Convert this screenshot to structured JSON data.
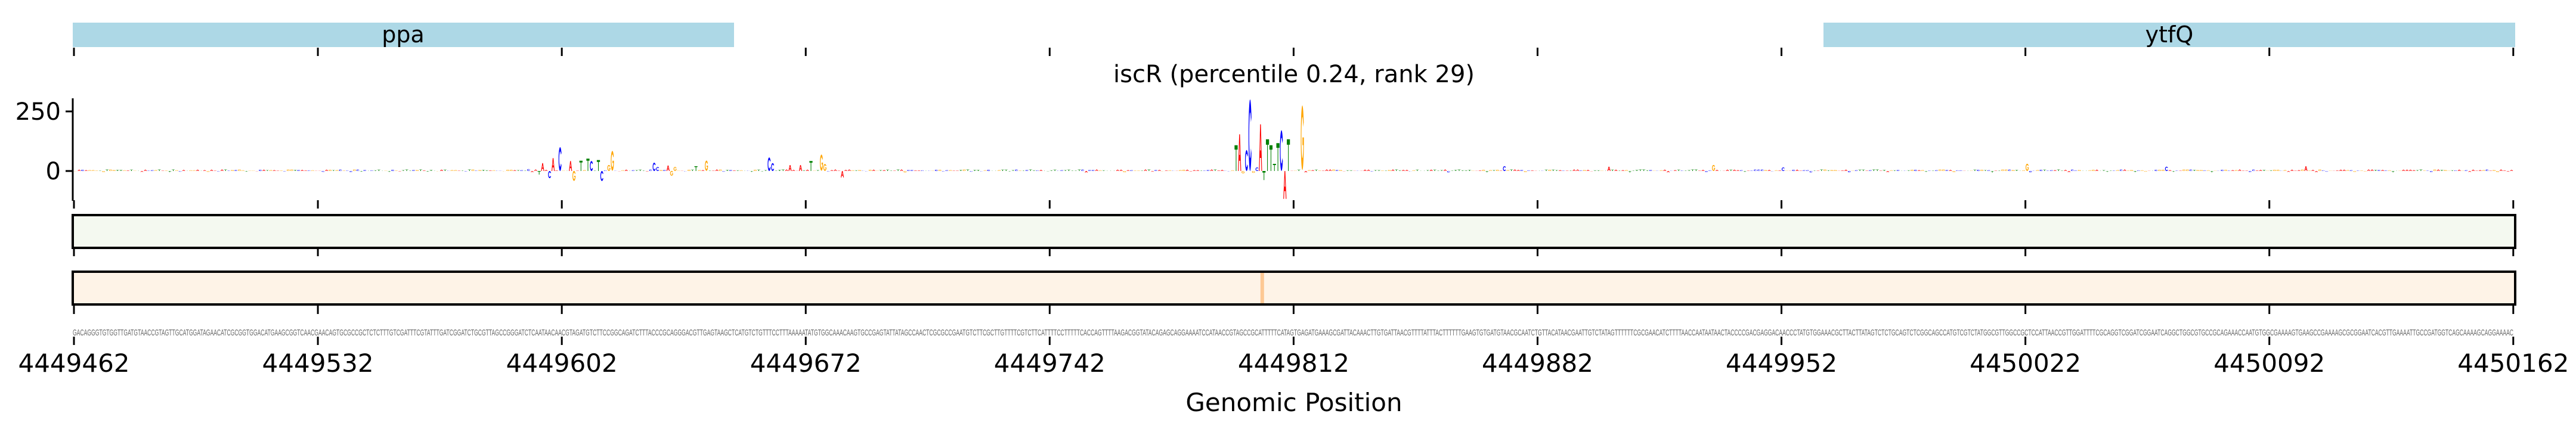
{
  "chart_data": {
    "type": "sequence-logo-track",
    "title": "iscR (percentile 0.24, rank 29)",
    "xlabel": "Genomic Position",
    "xlim": [
      4449462,
      4450162
    ],
    "xticks": [
      "4449462",
      "4449532",
      "4449602",
      "4449672",
      "4449742",
      "4449812",
      "4449882",
      "4449952",
      "4450022",
      "4450092",
      "4450162"
    ],
    "ylim": [
      -120,
      310
    ],
    "yticks": [
      {
        "value": 250,
        "label": "250"
      },
      {
        "value": 0,
        "label": "0"
      }
    ],
    "annotations": [
      {
        "name": "ppa",
        "start": 4449462,
        "end": 4449651
      },
      {
        "name": "ytfQ",
        "start": 4449964,
        "end": 4450162
      }
    ],
    "letter_colors": {
      "A": "#ff0000",
      "C": "#0000ff",
      "G": "#ffa500",
      "T": "#008000"
    },
    "logo_peaks": [
      [
        130,
        "C",
        8
      ],
      [
        133,
        "T",
        -15
      ],
      [
        134,
        "A",
        33
      ],
      [
        136,
        "C",
        -30
      ],
      [
        137,
        "A",
        54
      ],
      [
        139,
        "C",
        100
      ],
      [
        142,
        "A",
        42
      ],
      [
        143,
        "G",
        -42
      ],
      [
        145,
        "T",
        43
      ],
      [
        147,
        "T",
        52
      ],
      [
        148,
        "C",
        42
      ],
      [
        150,
        "T",
        46
      ],
      [
        151,
        "C",
        -42
      ],
      [
        153,
        "G",
        25
      ],
      [
        154,
        "G",
        83
      ],
      [
        166,
        "C",
        35
      ],
      [
        167,
        "C",
        17
      ],
      [
        170,
        "A",
        23
      ],
      [
        171,
        "G",
        -20
      ],
      [
        172,
        "G",
        17
      ],
      [
        178,
        "T",
        20
      ],
      [
        181,
        "G",
        43
      ],
      [
        199,
        "C",
        57
      ],
      [
        200,
        "C",
        33
      ],
      [
        205,
        "A",
        25
      ],
      [
        208,
        "A",
        25
      ],
      [
        211,
        "T",
        42
      ],
      [
        214,
        "G",
        68
      ],
      [
        215,
        "G",
        29
      ],
      [
        220,
        "A",
        -27
      ],
      [
        333,
        "T",
        108
      ],
      [
        334,
        "A",
        154
      ],
      [
        335,
        "G",
        -10
      ],
      [
        336,
        "C",
        88
      ],
      [
        337,
        "C",
        300
      ],
      [
        338,
        "G",
        -8
      ],
      [
        339,
        "C",
        15
      ],
      [
        340,
        "A",
        196
      ],
      [
        341,
        "T",
        -38
      ],
      [
        342,
        "T",
        133
      ],
      [
        343,
        "T",
        108
      ],
      [
        344,
        "T",
        30
      ],
      [
        345,
        "T",
        117
      ],
      [
        346,
        "C",
        171
      ],
      [
        347,
        "A",
        -117
      ],
      [
        348,
        "T",
        133
      ],
      [
        352,
        "G",
        271
      ],
      [
        410,
        "C",
        20
      ],
      [
        440,
        "A",
        18
      ],
      [
        470,
        "G",
        25
      ],
      [
        490,
        "C",
        15
      ],
      [
        560,
        "G",
        30
      ],
      [
        600,
        "C",
        18
      ],
      [
        640,
        "A",
        20
      ]
    ],
    "tracks": [
      {
        "name": "track-green",
        "color": "#f4f9f0"
      },
      {
        "name": "track-orange",
        "color": "#fef3e7",
        "peak_position": 4449803,
        "peak_color": "#fdc894"
      }
    ],
    "sequence": "GACAGGGTGTGGTTGATGTAACCGTAGTTGCATGGATAGAACATCGCGGTGGACATGAAGCGGTCAACGAACAGTGCGCCGCTCTCTTTGTCGATTTCGTATTTGATCGGATCTGCGTTAGCCGGGATCTCAATAACAACGTAGATGTCTTCCGGCAGATCTTTACCCGCAGGGACGTTGAGTAAGCTCATGTCTGTTTCCTTTAAAAATATGTGGCAAACAAGTGCCGAGTATTATAGCCAACTCGCGCCGAATGTCTTCGCTTGTTTTCGTCTTCATTTTCCTTTTTCACCAGTTTTAAGACGGTATACAGAGCAGGAAAATCCATAACCGTAGCCGCATTTTTCATAGTGAGATGAAAGCGATTACAAACTTGTGATTAACGTTTTATTTACTTTTTTGAAGTGTGATGTAACGCAATCTGTTACATAACGAATTGTCTATAGTTTTTTCGCGAACATCTTTTAACCAATAATAACTACCCCGACGAGGACAACCCTATGTGGAAACGCTTACTTATAGTCTCTGCAGTCTCGGCAGCCATGTCGTCTATGGCGTTGGCCGCTCCATTAACCGTTGGATTTTCGCAGGTCGGATCGGAATCAGGCTGGCGTGCCGCAGAAACCAATGTGGCGAAAAGTGAAGCCGAAAAGCGCGGAATCACGTTGAAAATTGCCGATGGTCAGCAAAAGCAGGAAAAC"
  }
}
